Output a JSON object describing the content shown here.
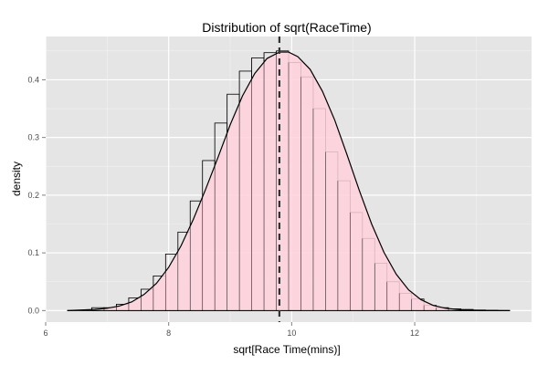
{
  "chart_data": {
    "type": "histogram",
    "title": "Distribution of sqrt(RaceTime)",
    "xlabel": "sqrt[Race Time(mins)]",
    "ylabel": "density",
    "xlim": [
      6.0,
      13.9
    ],
    "ylim": [
      -0.02,
      0.475
    ],
    "x_ticks": [
      6,
      8,
      10,
      12
    ],
    "x_tick_labels": [
      "6",
      "8",
      "10",
      "12"
    ],
    "y_ticks": [
      0.0,
      0.1,
      0.2,
      0.3,
      0.4
    ],
    "y_tick_labels": [
      "0.0",
      "0.1",
      "0.2",
      "0.3",
      "0.4"
    ],
    "grid": true,
    "bin_width": 0.2,
    "bin_starts": [
      6.75,
      6.95,
      7.15,
      7.35,
      7.55,
      7.75,
      7.95,
      8.15,
      8.35,
      8.55,
      8.75,
      8.95,
      9.15,
      9.35,
      9.55,
      9.75,
      9.95,
      10.15,
      10.35,
      10.55,
      10.75,
      10.95,
      11.15,
      11.35,
      11.55,
      11.75,
      11.95,
      12.15,
      12.35,
      12.55,
      12.75,
      12.95,
      13.15
    ],
    "bin_densities": [
      0.005,
      0.005,
      0.011,
      0.022,
      0.037,
      0.06,
      0.098,
      0.136,
      0.19,
      0.26,
      0.325,
      0.375,
      0.415,
      0.438,
      0.447,
      0.45,
      0.43,
      0.405,
      0.35,
      0.275,
      0.225,
      0.17,
      0.125,
      0.082,
      0.05,
      0.03,
      0.02,
      0.009,
      0.005,
      0.003,
      0.002,
      0.001,
      0.0005
    ],
    "density_curve": {
      "x": [
        6.35,
        6.8,
        7.0,
        7.2,
        7.4,
        7.6,
        7.8,
        8.0,
        8.2,
        8.4,
        8.6,
        8.8,
        9.0,
        9.2,
        9.4,
        9.6,
        9.8,
        9.95,
        10.1,
        10.3,
        10.5,
        10.7,
        10.9,
        11.1,
        11.3,
        11.5,
        11.7,
        11.9,
        12.1,
        12.3,
        12.5,
        12.8,
        13.1,
        13.55
      ],
      "y": [
        0.0,
        0.002,
        0.004,
        0.008,
        0.015,
        0.028,
        0.047,
        0.075,
        0.112,
        0.158,
        0.21,
        0.265,
        0.322,
        0.372,
        0.411,
        0.437,
        0.448,
        0.448,
        0.44,
        0.418,
        0.38,
        0.33,
        0.27,
        0.208,
        0.15,
        0.101,
        0.063,
        0.036,
        0.019,
        0.009,
        0.004,
        0.001,
        0.0002,
        0.0
      ]
    },
    "mean_line_x": 9.8,
    "colors": {
      "panel_bg": "#e5e5e5",
      "grid_major": "#ffffff",
      "grid_minor": "#f2f2f2",
      "fill": "#ffd1dc",
      "outline": "#000000",
      "curve": "#000000",
      "mean_line": "#333333"
    }
  }
}
